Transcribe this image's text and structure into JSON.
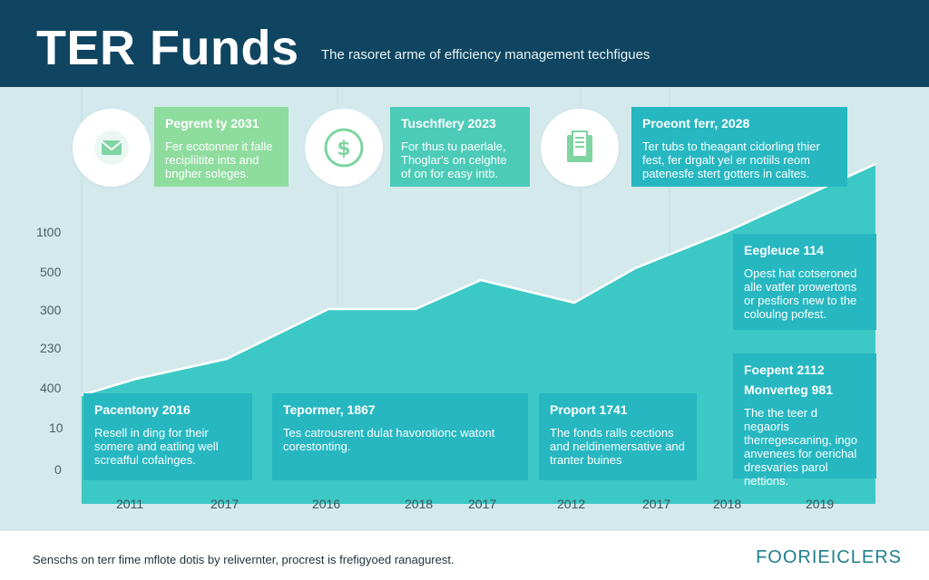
{
  "header": {
    "title": "TER Funds",
    "subtitle": "The rasoret arme of efficiency management techfigues"
  },
  "colors": {
    "header_bg": "#0f4560",
    "area_fill": "#3cc9c6",
    "card_green": "#8fdc9f",
    "card_teal": "#4ccbb9",
    "card_cyan": "#26b7c1"
  },
  "icons": [
    {
      "name": "envelope-icon"
    },
    {
      "name": "dollar-coin-icon"
    },
    {
      "name": "document-tablet-icon"
    }
  ],
  "chart_data": {
    "type": "area",
    "y_tick_labels": [
      "1t00",
      "500",
      "300",
      "230",
      "400",
      "10",
      "0"
    ],
    "x_tick_labels": [
      "2011",
      "2017",
      "2016",
      "2018",
      "2017",
      "2012",
      "2017",
      "2018",
      "2019"
    ]
  },
  "top_cards": [
    {
      "title": "Pegrent ty 2031",
      "body": "Fer ecotonner it falle recipliitite ints and bngher soleges."
    },
    {
      "title": "Tuschflery 2023",
      "body": "For thus tu paerlale, Thoglar's on celghte of on for easy intb."
    },
    {
      "title": "Proeont ferr, 2028",
      "body": "Ter tubs to theagant cidorling thier fest, fer drgalt yel er notiils reom patenesfe stert gotters in caltes."
    }
  ],
  "side_cards": [
    {
      "title": "Eegleuce 114",
      "body": "Opest hat cotseroned alle vatfer prowertons or pesfiors new to the coloulng pofest."
    },
    {
      "title": "Foepent 2112",
      "title2": "Monverteg 981",
      "body": "The the teer d negaoris therregescaning, ingo anvenees for oerichal dresvaries parol nettions."
    }
  ],
  "bottom_cards": [
    {
      "title": "Pacentony 2016",
      "body": "Resell in ding for their somere and eatling well screafful cofalnges."
    },
    {
      "title": "Tepormer, 1867",
      "body": "Tes catrousrent dulat havorotionc watont corestonting."
    },
    {
      "title": "Proport 1741",
      "body": "The fonds ralls cections and neldinemersative and tranter buines"
    }
  ],
  "footer": {
    "note": "Senschs on terr fime mflote dotis by relivernter, procrest is frefigyoed ranagurest.",
    "brand": "FOORIEICLERS"
  }
}
